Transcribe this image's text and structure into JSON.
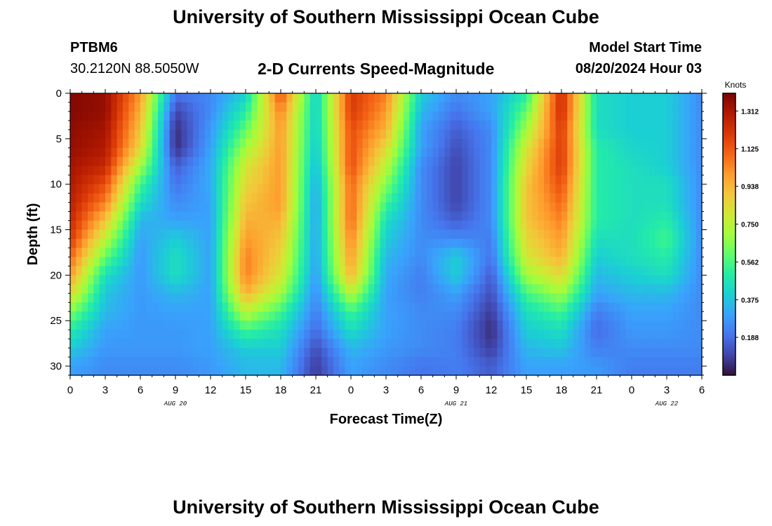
{
  "header": {
    "title": "University of Southern Mississippi Ocean Cube",
    "station_id": "PTBM6",
    "coords": "30.2120N  88.5050W",
    "plot_title": "2-D Currents Speed-Magnitude",
    "model_start_label": "Model Start Time",
    "model_start_value": "08/20/2024 Hour 03"
  },
  "footer": {
    "title": "University of Southern Mississippi Ocean Cube"
  },
  "colors": {
    "colormap": [
      "#30123b",
      "#4145ab",
      "#4675ed",
      "#39a2fc",
      "#1bcfd4",
      "#24eca6",
      "#61fc6c",
      "#a4fc3b",
      "#d1e834",
      "#f3c63a",
      "#fe9b2d",
      "#f36315",
      "#d93806",
      "#b11901",
      "#7a0402"
    ]
  },
  "chart_data": {
    "type": "heatmap",
    "title": "2-D Currents Speed-Magnitude",
    "xlabel": "Forecast Time(Z)",
    "ylabel": "Depth (ft)",
    "x_ticks": [
      "0",
      "3",
      "6",
      "9",
      "12",
      "15",
      "18",
      "21",
      "0",
      "3",
      "6",
      "9",
      "12",
      "15",
      "18",
      "21",
      "0",
      "3",
      "6"
    ],
    "x_hours_range": [
      0,
      54
    ],
    "date_labels": [
      {
        "hour": 9,
        "label": "AUG 20"
      },
      {
        "hour": 33,
        "label": "AUG 21"
      },
      {
        "hour": 51,
        "label": "AUG 22"
      }
    ],
    "y_ticks": [
      0,
      5,
      10,
      15,
      20,
      25,
      30
    ],
    "ylim": [
      0,
      31
    ],
    "y_inverted": true,
    "colorbar": {
      "label": "Knots",
      "ticks": [
        "0.188",
        "0.375",
        "0.562",
        "0.750",
        "0.938",
        "1.125",
        "1.312"
      ],
      "range": [
        0.0,
        1.4
      ]
    },
    "grid_note": "speed in knots, rows = depth (ft) 0..30, columns = forecast hour 0..54 in 3-hour steps",
    "x_hours": [
      0,
      3,
      6,
      9,
      12,
      15,
      18,
      21,
      24,
      27,
      30,
      33,
      36,
      39,
      42,
      45,
      48,
      51,
      54
    ],
    "depths": [
      0,
      2,
      4,
      6,
      8,
      10,
      12,
      14,
      16,
      18,
      20,
      22,
      24,
      26,
      28,
      30
    ],
    "values": [
      [
        1.38,
        1.35,
        1.0,
        0.2,
        0.25,
        0.4,
        1.15,
        0.4,
        1.2,
        1.05,
        0.4,
        0.25,
        0.3,
        0.5,
        1.25,
        0.45,
        0.4,
        0.4,
        0.25
      ],
      [
        1.38,
        1.35,
        0.95,
        0.1,
        0.25,
        0.5,
        1.05,
        0.4,
        1.2,
        1.0,
        0.35,
        0.2,
        0.3,
        0.6,
        1.25,
        0.45,
        0.4,
        0.4,
        0.25
      ],
      [
        1.36,
        1.32,
        0.9,
        0.05,
        0.28,
        0.6,
        1.0,
        0.4,
        1.15,
        0.95,
        0.3,
        0.15,
        0.25,
        0.7,
        1.2,
        0.45,
        0.4,
        0.4,
        0.25
      ],
      [
        1.35,
        1.3,
        0.85,
        0.05,
        0.3,
        0.7,
        1.0,
        0.38,
        1.15,
        0.85,
        0.3,
        0.12,
        0.25,
        0.8,
        1.2,
        0.5,
        0.42,
        0.4,
        0.25
      ],
      [
        1.32,
        1.25,
        0.7,
        0.15,
        0.32,
        0.8,
        1.0,
        0.35,
        1.15,
        0.75,
        0.25,
        0.1,
        0.25,
        0.85,
        1.2,
        0.5,
        0.45,
        0.4,
        0.25
      ],
      [
        1.3,
        1.15,
        0.55,
        0.2,
        0.32,
        0.85,
        1.0,
        0.32,
        1.1,
        0.65,
        0.25,
        0.1,
        0.25,
        0.9,
        1.15,
        0.5,
        0.45,
        0.45,
        0.25
      ],
      [
        1.28,
        1.05,
        0.45,
        0.25,
        0.3,
        0.9,
        1.0,
        0.3,
        1.1,
        0.55,
        0.25,
        0.1,
        0.25,
        0.9,
        1.1,
        0.5,
        0.45,
        0.45,
        0.25
      ],
      [
        1.25,
        0.9,
        0.35,
        0.3,
        0.3,
        0.95,
        0.95,
        0.3,
        1.1,
        0.45,
        0.25,
        0.15,
        0.25,
        0.9,
        1.05,
        0.5,
        0.45,
        0.5,
        0.25
      ],
      [
        1.2,
        0.75,
        0.3,
        0.4,
        0.3,
        1.0,
        0.9,
        0.3,
        1.05,
        0.4,
        0.25,
        0.25,
        0.22,
        0.85,
        1.0,
        0.45,
        0.45,
        0.55,
        0.25
      ],
      [
        1.1,
        0.6,
        0.28,
        0.45,
        0.3,
        1.05,
        0.85,
        0.3,
        1.0,
        0.35,
        0.25,
        0.4,
        0.2,
        0.8,
        0.95,
        0.4,
        0.45,
        0.5,
        0.25
      ],
      [
        1.0,
        0.45,
        0.28,
        0.45,
        0.3,
        1.05,
        0.8,
        0.28,
        0.95,
        0.32,
        0.22,
        0.4,
        0.15,
        0.7,
        0.85,
        0.35,
        0.4,
        0.45,
        0.25
      ],
      [
        0.85,
        0.38,
        0.28,
        0.35,
        0.3,
        0.95,
        0.7,
        0.25,
        0.75,
        0.3,
        0.22,
        0.3,
        0.12,
        0.55,
        0.7,
        0.3,
        0.35,
        0.35,
        0.25
      ],
      [
        0.65,
        0.35,
        0.28,
        0.3,
        0.3,
        0.75,
        0.55,
        0.22,
        0.55,
        0.3,
        0.25,
        0.25,
        0.08,
        0.45,
        0.55,
        0.22,
        0.3,
        0.3,
        0.25
      ],
      [
        0.5,
        0.3,
        0.28,
        0.28,
        0.3,
        0.55,
        0.45,
        0.18,
        0.45,
        0.3,
        0.25,
        0.22,
        0.05,
        0.4,
        0.45,
        0.18,
        0.28,
        0.28,
        0.25
      ],
      [
        0.4,
        0.28,
        0.28,
        0.28,
        0.3,
        0.4,
        0.4,
        0.12,
        0.35,
        0.28,
        0.25,
        0.22,
        0.08,
        0.35,
        0.38,
        0.22,
        0.25,
        0.25,
        0.25
      ],
      [
        0.3,
        0.25,
        0.25,
        0.25,
        0.28,
        0.35,
        0.35,
        0.08,
        0.3,
        0.25,
        0.2,
        0.22,
        0.15,
        0.3,
        0.3,
        0.28,
        0.22,
        0.22,
        0.22
      ]
    ]
  }
}
